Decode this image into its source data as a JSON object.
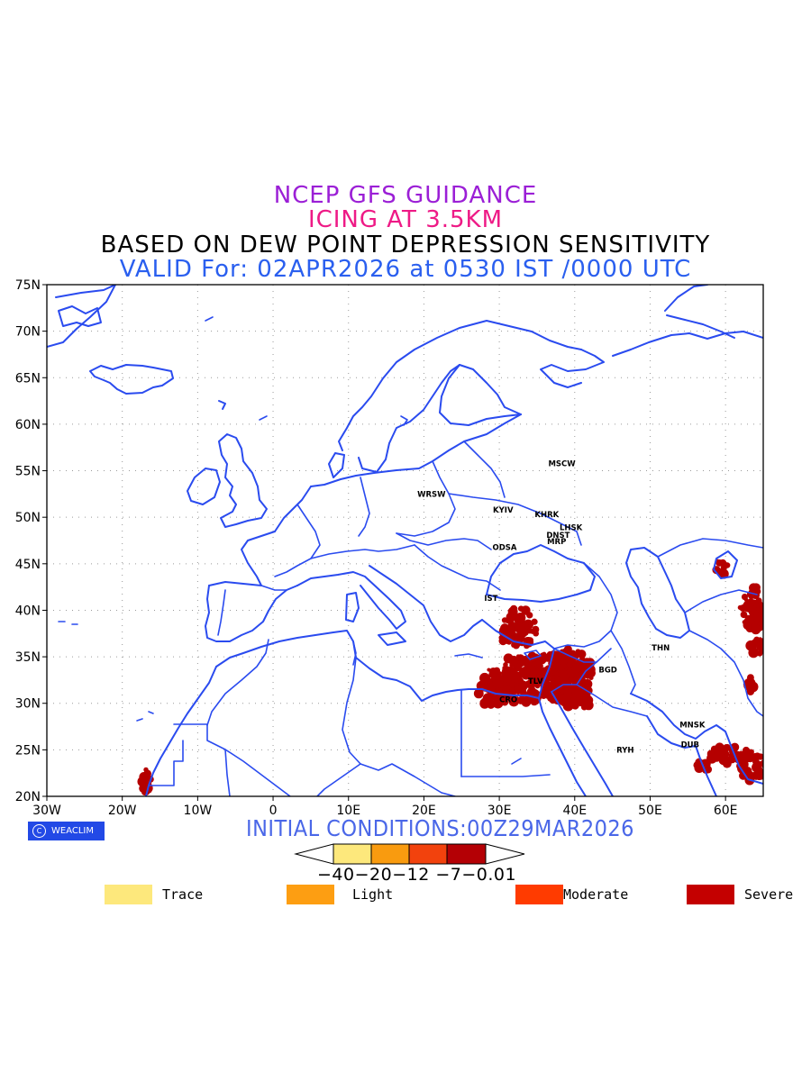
{
  "title": {
    "line1": "NCEP GFS GUIDANCE",
    "line2": "ICING AT 3.5KM",
    "line3": "BASED ON DEW POINT DEPRESSION SENSITIVITY",
    "line4": "VALID For: 02APR2026 at 0530 IST /0000 UTC"
  },
  "axes": {
    "y_ticks": [
      "75N",
      "70N",
      "65N",
      "60N",
      "55N",
      "50N",
      "45N",
      "40N",
      "35N",
      "30N",
      "25N",
      "20N"
    ],
    "x_ticks": [
      "30W",
      "20W",
      "10W",
      "0",
      "10E",
      "20E",
      "30E",
      "40E",
      "50E",
      "60E"
    ]
  },
  "cities": [
    {
      "name": "MSCW",
      "lon": 38.3,
      "lat": 55.5
    },
    {
      "name": "WRSW",
      "lon": 21.0,
      "lat": 52.2
    },
    {
      "name": "KYIV",
      "lon": 30.5,
      "lat": 50.5
    },
    {
      "name": "KHRK",
      "lon": 36.3,
      "lat": 50.0
    },
    {
      "name": "LHSK",
      "lon": 39.5,
      "lat": 48.6
    },
    {
      "name": "DNST",
      "lon": 37.8,
      "lat": 47.8
    },
    {
      "name": "MRP",
      "lon": 37.6,
      "lat": 47.1
    },
    {
      "name": "ODSA",
      "lon": 30.7,
      "lat": 46.5
    },
    {
      "name": "IST",
      "lon": 28.9,
      "lat": 41.0
    },
    {
      "name": "THN",
      "lon": 51.4,
      "lat": 35.7
    },
    {
      "name": "BGD",
      "lon": 44.4,
      "lat": 33.3
    },
    {
      "name": "CRO",
      "lon": 31.2,
      "lat": 30.1
    },
    {
      "name": "TLV",
      "lon": 34.8,
      "lat": 32.1
    },
    {
      "name": "MNSK",
      "lon": 55.6,
      "lat": 27.4
    },
    {
      "name": "DUB",
      "lon": 55.3,
      "lat": 25.3
    },
    {
      "name": "RYH",
      "lon": 46.7,
      "lat": 24.7
    }
  ],
  "branding": {
    "logo_text": "WEACLIM"
  },
  "initial_conditions": "INITIAL CONDITIONS:00Z29MAR2026",
  "colorbar": {
    "labels": "−40−20−12 −7−0.01",
    "colors": [
      "#fde87c",
      "#f99b0f",
      "#f2420d",
      "#b40005"
    ]
  },
  "legend": [
    {
      "label": "Trace",
      "color": "#fde87c"
    },
    {
      "label": "Light",
      "color": "#fd9e12"
    },
    {
      "label": "Moderate",
      "color": "#ff3b00"
    },
    {
      "label": "Severe",
      "color": "#c40000"
    }
  ],
  "colors": {
    "coastline": "#2a4bef",
    "severe_icing": "#b50000",
    "grid": "#9a9a9a"
  }
}
